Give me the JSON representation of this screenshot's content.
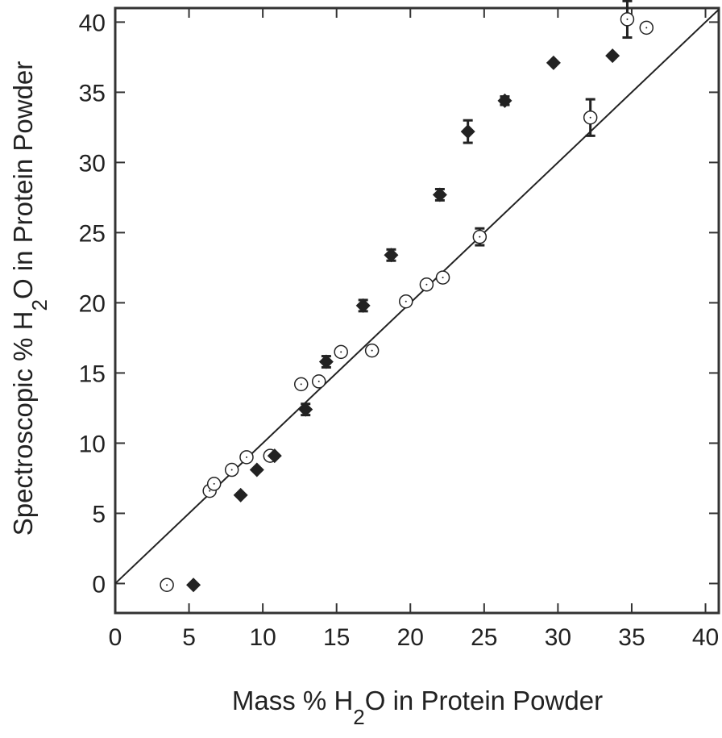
{
  "chart_data": {
    "type": "scatter",
    "title": "",
    "xlabel": {
      "prefix": "Mass % H",
      "sub": "2",
      "suffix": "O in Protein Powder"
    },
    "ylabel": {
      "prefix": "Spectroscopic % H",
      "sub": "2",
      "suffix": "O in Protein Powder"
    },
    "xlim": [
      0,
      40.9
    ],
    "ylim": [
      -2.1,
      41
    ],
    "xticks": [
      0,
      5,
      10,
      15,
      20,
      25,
      30,
      35,
      40
    ],
    "yticks": [
      0,
      5,
      10,
      15,
      20,
      25,
      30,
      35,
      40
    ],
    "grid": false,
    "reference_line": {
      "x": [
        0,
        40.9
      ],
      "y": [
        0,
        40.9
      ]
    },
    "colors": {
      "axis": "#333333",
      "marker": "#222222"
    },
    "series": [
      {
        "marker": "open-circle-dot",
        "points": [
          {
            "x": 3.5,
            "y": -0.1
          },
          {
            "x": 6.4,
            "y": 6.6
          },
          {
            "x": 6.7,
            "y": 7.1
          },
          {
            "x": 7.9,
            "y": 8.1
          },
          {
            "x": 8.9,
            "y": 9.0
          },
          {
            "x": 10.5,
            "y": 9.1
          },
          {
            "x": 12.6,
            "y": 14.2
          },
          {
            "x": 13.8,
            "y": 14.4
          },
          {
            "x": 15.3,
            "y": 16.5
          },
          {
            "x": 17.4,
            "y": 16.6
          },
          {
            "x": 19.7,
            "y": 20.1
          },
          {
            "x": 21.1,
            "y": 21.3
          },
          {
            "x": 22.2,
            "y": 21.8
          },
          {
            "x": 24.7,
            "y": 24.7,
            "err": 0.6
          },
          {
            "x": 32.2,
            "y": 33.2,
            "err": 1.3
          },
          {
            "x": 34.7,
            "y": 40.2,
            "err": 1.3
          },
          {
            "x": 36.0,
            "y": 39.6
          }
        ]
      },
      {
        "marker": "filled-diamond",
        "points": [
          {
            "x": 5.3,
            "y": -0.1
          },
          {
            "x": 8.5,
            "y": 6.3
          },
          {
            "x": 9.6,
            "y": 8.1
          },
          {
            "x": 10.8,
            "y": 9.1
          },
          {
            "x": 12.9,
            "y": 12.4,
            "err": 0.4
          },
          {
            "x": 14.3,
            "y": 15.8,
            "err": 0.4
          },
          {
            "x": 16.8,
            "y": 19.8,
            "err": 0.4
          },
          {
            "x": 18.7,
            "y": 23.4,
            "err": 0.4
          },
          {
            "x": 22.0,
            "y": 27.7,
            "err": 0.4
          },
          {
            "x": 23.9,
            "y": 32.2,
            "err": 0.8
          },
          {
            "x": 26.4,
            "y": 34.4,
            "err": 0.3
          },
          {
            "x": 29.7,
            "y": 37.1
          },
          {
            "x": 33.7,
            "y": 37.6
          }
        ]
      }
    ]
  }
}
